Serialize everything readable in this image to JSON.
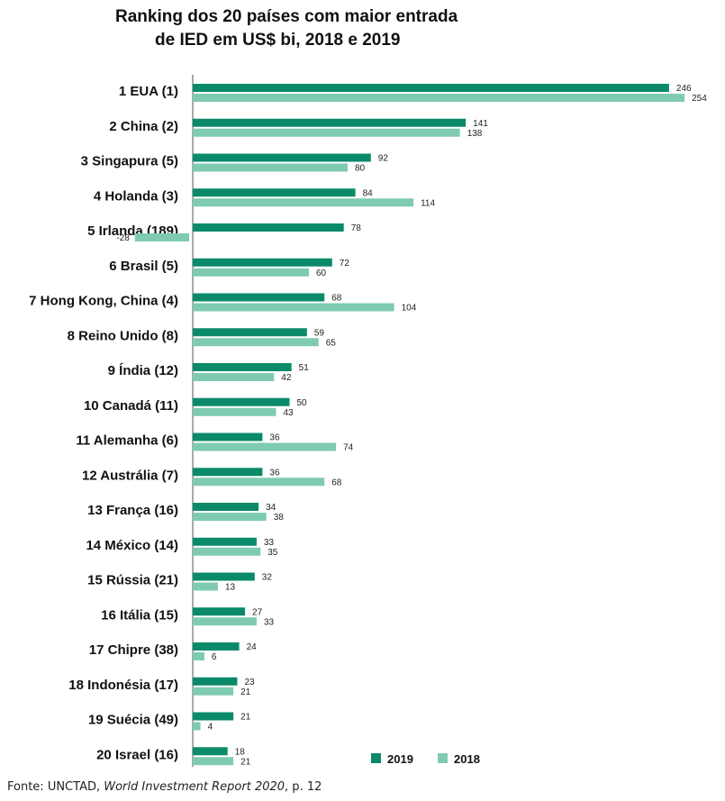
{
  "title_line1": "Ranking dos 20 países com maior entrada",
  "title_line2": "de IED em US$ bi, 2018 e 2019",
  "source": {
    "prefix": "Fonte: UNCTAD, ",
    "italic": "World Investment Report 2020",
    "suffix": ", p. 12"
  },
  "chart_data": {
    "type": "bar",
    "orientation": "horizontal",
    "title": "Ranking dos 20 países com maior entrada de IED em US$ bi, 2018 e 2019",
    "categories": [
      "1 EUA (1)",
      "2 China (2)",
      "3 Singapura (5)",
      "4 Holanda (3)",
      "5 Irlanda (189)",
      "6 Brasil (5)",
      "7 Hong Kong, China (4)",
      "8 Reino Unido (8)",
      "9 Índia (12)",
      "10 Canadá (11)",
      "11 Alemanha (6)",
      "12 Austrália (7)",
      "13 França (16)",
      "14 México (14)",
      "15 Rússia (21)",
      "16 Itália (15)",
      "17 Chipre (38)",
      "18 Indonésia (17)",
      "19 Suécia (49)",
      "20 Israel (16)"
    ],
    "series": [
      {
        "name": "2019",
        "color": "#0b8a6a",
        "values": [
          246,
          141,
          92,
          84,
          78,
          72,
          68,
          59,
          51,
          50,
          36,
          36,
          34,
          33,
          32,
          27,
          24,
          23,
          21,
          18
        ]
      },
      {
        "name": "2018",
        "color": "#7fcbb1",
        "values": [
          254,
          138,
          80,
          114,
          -28,
          60,
          104,
          65,
          42,
          43,
          74,
          68,
          38,
          35,
          13,
          33,
          6,
          21,
          4,
          21
        ]
      }
    ],
    "legend_position": "bottom-right",
    "grid": false
  }
}
